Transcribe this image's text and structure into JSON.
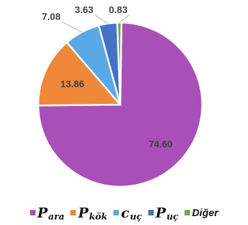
{
  "chart_data": {
    "type": "pie",
    "title": "",
    "slices": [
      {
        "label": "P ara",
        "value": 74.6,
        "value_label": "74.60",
        "color": "#A94FB8"
      },
      {
        "label": "P kök",
        "value": 13.86,
        "value_label": "13.86",
        "color": "#F0883A"
      },
      {
        "label": "c uç",
        "value": 7.08,
        "value_label": "7.08",
        "color": "#5AA9E6"
      },
      {
        "label": "P uç",
        "value": 3.63,
        "value_label": "3.63",
        "color": "#4472C4"
      },
      {
        "label": "Diğer",
        "value": 0.83,
        "value_label": "0.83",
        "color": "#70AD47"
      }
    ],
    "legend_position": "bottom"
  },
  "legend": {
    "items": [
      {
        "main": "P",
        "sub": "ara",
        "color": "#A94FB8"
      },
      {
        "main": "P",
        "sub": "kök",
        "color": "#F0883A"
      },
      {
        "main": "c",
        "sub": "uç",
        "color": "#5AA9E6"
      },
      {
        "main": "P",
        "sub": "uç",
        "color": "#4472C4"
      },
      {
        "plain": "Diğer",
        "color": "#70AD47"
      }
    ]
  }
}
